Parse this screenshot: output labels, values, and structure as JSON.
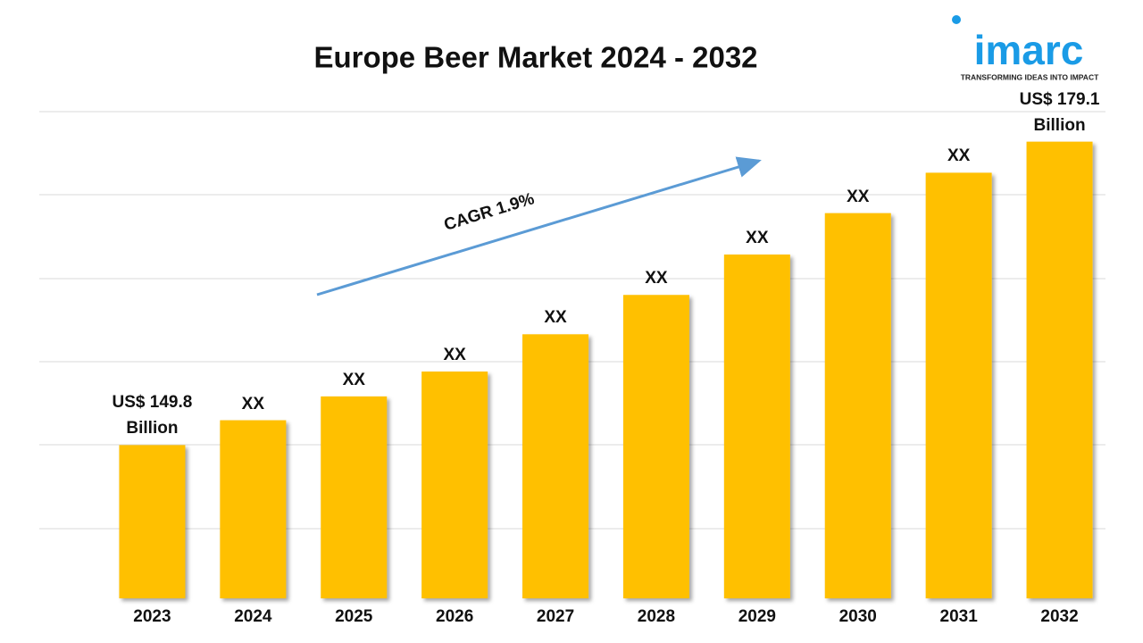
{
  "chart_data": {
    "type": "bar",
    "title": "Europe Beer Market 2024 - 2032",
    "categories": [
      "2023",
      "2024",
      "2025",
      "2026",
      "2027",
      "2028",
      "2029",
      "2030",
      "2031",
      "2032"
    ],
    "values": [
      149.8,
      152.2,
      154.5,
      156.9,
      160.5,
      164.3,
      168.2,
      172.2,
      176.1,
      179.1
    ],
    "value_labels": [
      "US$ 149.8 Billion",
      "XX",
      "XX",
      "XX",
      "XX",
      "XX",
      "XX",
      "XX",
      "XX",
      "US$ 179.1 Billion"
    ],
    "color": "#FFC000",
    "ylim": [
      135,
      182
    ],
    "annotation": "CAGR 1.9%"
  },
  "logo": {
    "name": "imarc",
    "tagline": "TRANSFORMING IDEAS INTO IMPACT"
  }
}
